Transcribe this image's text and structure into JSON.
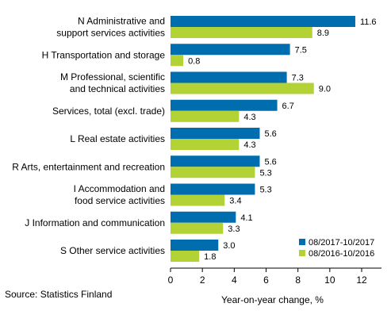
{
  "chart_data": {
    "type": "bar",
    "orientation": "horizontal",
    "categories": [
      [
        "N Administrative and",
        "support services activities"
      ],
      [
        "H Transportation and storage"
      ],
      [
        "M Professional, scientific",
        "and technical activities"
      ],
      [
        "Services, total (excl. trade)"
      ],
      [
        "L Real estate activities"
      ],
      [
        "R Arts, entertainment and recreation"
      ],
      [
        "I Accommodation and",
        "food service activities"
      ],
      [
        "J Information and communication"
      ],
      [
        "S Other service activities"
      ]
    ],
    "series": [
      {
        "name": "08/2017-10/2017",
        "color": "#006dae",
        "values": [
          11.6,
          7.5,
          7.3,
          6.7,
          5.6,
          5.6,
          5.3,
          4.1,
          3.0
        ]
      },
      {
        "name": "08/2016-10/2016",
        "color": "#b2d235",
        "values": [
          8.9,
          0.8,
          9.0,
          4.3,
          4.3,
          5.3,
          3.4,
          3.3,
          1.8
        ]
      }
    ],
    "xlabel": "Year-on-year change, %",
    "xlim": [
      0,
      12
    ],
    "xticks": [
      0,
      2,
      4,
      6,
      8,
      10,
      12
    ],
    "legend_position": "bottom-right",
    "grid": false
  },
  "source": "Source: Statistics Finland"
}
